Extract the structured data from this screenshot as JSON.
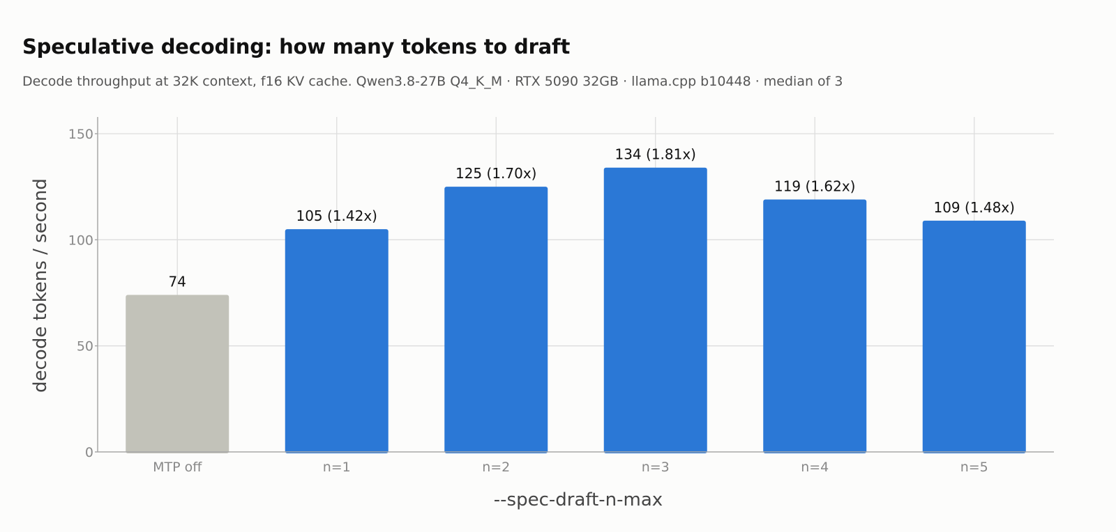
{
  "colors": {
    "baseline": "#c2c2b9",
    "highlight": "#2b78d6",
    "background": "#fcfcfb"
  },
  "chart_data": {
    "type": "bar",
    "title": "Speculative decoding: how many tokens to draft",
    "subtitle": "Decode throughput at 32K context, f16 KV cache. Qwen3.8-27B Q4_K_M · RTX 5090 32GB · llama.cpp b10448 · median of 3",
    "xlabel": "--spec-draft-n-max",
    "ylabel": "decode tokens / second",
    "categories": [
      "MTP off",
      "n=1",
      "n=2",
      "n=3",
      "n=4",
      "n=5"
    ],
    "values": [
      74,
      105,
      125,
      134,
      119,
      109
    ],
    "data_labels": [
      "74",
      "105  (1.42x)",
      "125  (1.70x)",
      "134  (1.81x)",
      "119  (1.62x)",
      "109  (1.48x)"
    ],
    "bar_colors": [
      "baseline",
      "highlight",
      "highlight",
      "highlight",
      "highlight",
      "highlight"
    ],
    "ylim": [
      0,
      158
    ],
    "yticks": [
      0,
      50,
      100,
      150
    ],
    "grid": true,
    "legend": "none"
  }
}
